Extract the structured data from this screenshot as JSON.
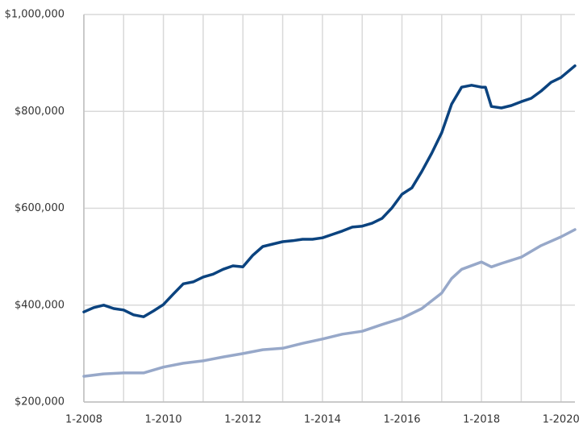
{
  "chart_data": {
    "type": "line",
    "series": [
      {
        "color": "#0b437f",
        "x": [
          2008.0,
          2008.25,
          2008.5,
          2008.75,
          2009.0,
          2009.25,
          2009.5,
          2009.75,
          2010.0,
          2010.25,
          2010.5,
          2010.75,
          2011.0,
          2011.25,
          2011.5,
          2011.75,
          2012.0,
          2012.25,
          2012.5,
          2012.75,
          2013.0,
          2013.25,
          2013.5,
          2013.75,
          2014.0,
          2014.25,
          2014.5,
          2014.75,
          2015.0,
          2015.25,
          2015.5,
          2015.75,
          2016.0,
          2016.25,
          2016.5,
          2016.75,
          2017.0,
          2017.25,
          2017.5,
          2017.75,
          2018.0,
          2018.1,
          2018.25,
          2018.5,
          2018.75,
          2019.0,
          2019.25,
          2019.5,
          2019.75,
          2020.0,
          2020.35
        ],
        "values": [
          386000,
          395000,
          400000,
          393000,
          390000,
          380000,
          376000,
          388000,
          401000,
          423000,
          444000,
          448000,
          458000,
          464000,
          474000,
          481000,
          479000,
          503000,
          521000,
          526000,
          531000,
          533000,
          536000,
          536000,
          539000,
          546000,
          553000,
          561000,
          563000,
          569000,
          579000,
          601000,
          629000,
          642000,
          676000,
          714000,
          756000,
          815000,
          850000,
          854000,
          850000,
          850000,
          810000,
          807000,
          812000,
          820000,
          827000,
          842000,
          860000,
          870000,
          894000
        ]
      },
      {
        "color": "#97a8c9",
        "x": [
          2008.0,
          2008.5,
          2009.0,
          2009.5,
          2010.0,
          2010.5,
          2011.0,
          2011.5,
          2012.0,
          2012.5,
          2013.0,
          2013.5,
          2014.0,
          2014.5,
          2015.0,
          2015.5,
          2016.0,
          2016.5,
          2017.0,
          2017.25,
          2017.5,
          2018.0,
          2018.25,
          2018.5,
          2019.0,
          2019.5,
          2020.0,
          2020.35
        ],
        "values": [
          253000,
          258000,
          260000,
          260000,
          272000,
          280000,
          285000,
          293000,
          300000,
          308000,
          311000,
          321000,
          330000,
          340000,
          346000,
          360000,
          373000,
          393000,
          425000,
          455000,
          474000,
          489000,
          479000,
          486000,
          499000,
          523000,
          541000,
          556000
        ]
      }
    ],
    "xlim": [
      2008.0,
      2020.35
    ],
    "xticks": [
      {
        "value": 2008,
        "label": "1-2008"
      },
      {
        "value": 2010,
        "label": "1-2010"
      },
      {
        "value": 2012,
        "label": "1-2012"
      },
      {
        "value": 2014,
        "label": "1-2014"
      },
      {
        "value": 2016,
        "label": "1-2016"
      },
      {
        "value": 2018,
        "label": "1-2018"
      },
      {
        "value": 2020,
        "label": "1-2020"
      }
    ],
    "xgrid_ticks": [
      2009,
      2011,
      2013,
      2015,
      2017,
      2019
    ],
    "ylim": [
      200000,
      1000000
    ],
    "yticks": [
      {
        "value": 200000,
        "label": "$200,000"
      },
      {
        "value": 400000,
        "label": "$400,000"
      },
      {
        "value": 600000,
        "label": "$600,000"
      },
      {
        "value": 800000,
        "label": "$800,000"
      },
      {
        "value": 1000000,
        "label": "$1,000,000"
      }
    ],
    "grid": true
  }
}
